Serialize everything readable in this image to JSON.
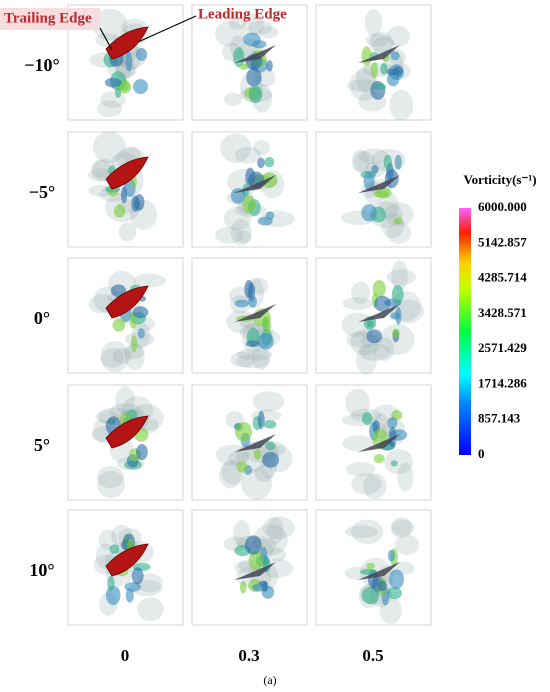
{
  "annotations": [
    "Trailing Edge",
    "Leading Edge"
  ],
  "rows": [
    "−10°",
    "−5°",
    "0°",
    "5°",
    "10°"
  ],
  "columns": [
    "0",
    "0.3",
    "0.5"
  ],
  "colorbar": {
    "title": "Vorticity(s⁻¹)",
    "ticks": [
      "6000.000",
      "5142.857",
      "4285.714",
      "3428.571",
      "2571.429",
      "1714.286",
      "857.143",
      "0"
    ]
  },
  "caption": "(a)"
}
